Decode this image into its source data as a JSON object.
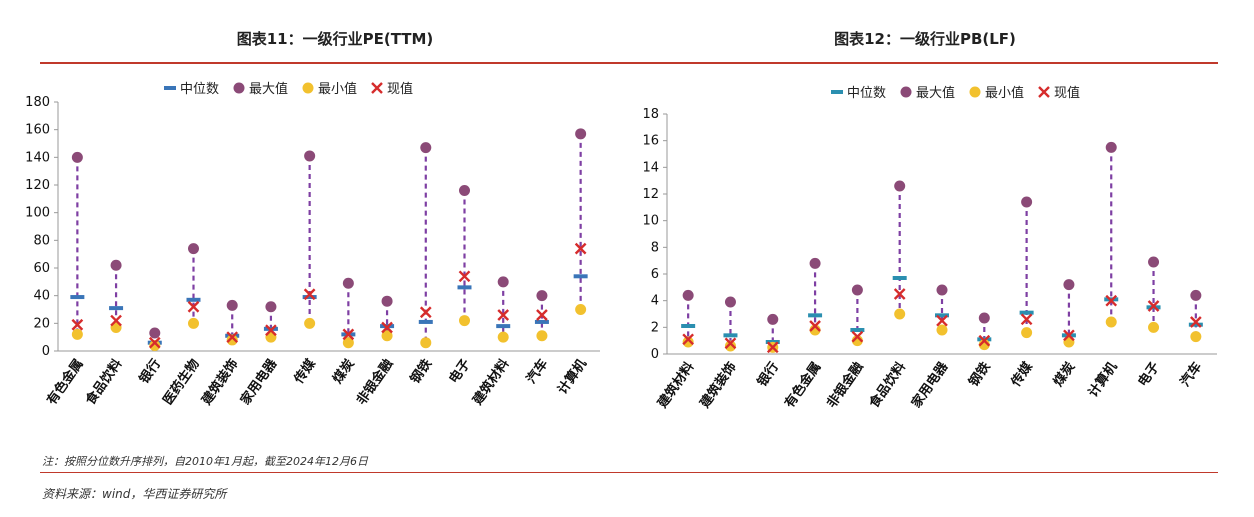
{
  "page": {
    "left_title": "图表11：一级行业PE(TTM)",
    "right_title": "图表12：一级行业PB(LF)",
    "note": "注：按照分位数升序排列，自2010年1月起，截至2024年12月6日",
    "source": "资料来源：wind，华西证券研究所"
  },
  "legend": {
    "median": "中位数",
    "max": "最大值",
    "min": "最小值",
    "current": "现值"
  },
  "colors": {
    "median": "#3a75b8",
    "median_right": "#2b8fb0",
    "max": "#8b4a77",
    "min": "#f2c12e",
    "current": "#d62c2c",
    "range_line": "#7e3fa3",
    "axis": "#999999",
    "rule": "#c0392b"
  },
  "chart_data": [
    {
      "type": "scatter",
      "title": "图表11：一级行业PE(TTM)",
      "ylim": [
        0,
        180
      ],
      "yticks": [
        0,
        20,
        40,
        60,
        80,
        100,
        120,
        140,
        160,
        180
      ],
      "categories": [
        "有色金属",
        "食品饮料",
        "银行",
        "医药生物",
        "建筑装饰",
        "家用电器",
        "传媒",
        "煤炭",
        "非银金融",
        "钢铁",
        "电子",
        "建筑材料",
        "汽车",
        "计算机"
      ],
      "series": [
        {
          "name": "中位数",
          "values": [
            39,
            31,
            6,
            37,
            11,
            16,
            39,
            12,
            18,
            21,
            46,
            18,
            21,
            54
          ]
        },
        {
          "name": "最大值",
          "values": [
            140,
            62,
            13,
            74,
            33,
            32,
            141,
            49,
            36,
            147,
            116,
            50,
            40,
            157
          ]
        },
        {
          "name": "最小值",
          "values": [
            12,
            17,
            4,
            20,
            8,
            10,
            20,
            6,
            11,
            6,
            22,
            10,
            11,
            30
          ]
        },
        {
          "name": "现值",
          "values": [
            19,
            22,
            6,
            32,
            10,
            15,
            41,
            12,
            17,
            28,
            54,
            26,
            26,
            74
          ]
        }
      ]
    },
    {
      "type": "scatter",
      "title": "图表12：一级行业PB(LF)",
      "ylim": [
        0,
        18
      ],
      "yticks": [
        0,
        2,
        4,
        6,
        8,
        10,
        12,
        14,
        16,
        18
      ],
      "categories": [
        "建筑材料",
        "建筑装饰",
        "银行",
        "有色金属",
        "非银金融",
        "食品饮料",
        "家用电器",
        "钢铁",
        "传媒",
        "煤炭",
        "计算机",
        "电子",
        "汽车"
      ],
      "series": [
        {
          "name": "中位数",
          "values": [
            2.1,
            1.4,
            0.9,
            2.9,
            1.8,
            5.7,
            2.9,
            1.1,
            3.1,
            1.4,
            4.1,
            3.5,
            2.2
          ]
        },
        {
          "name": "最大值",
          "values": [
            4.4,
            3.9,
            2.6,
            6.8,
            4.8,
            12.6,
            4.8,
            2.7,
            11.4,
            5.2,
            15.5,
            6.9,
            4.4
          ]
        },
        {
          "name": "最小值",
          "values": [
            0.9,
            0.6,
            0.5,
            1.8,
            1.0,
            3.0,
            1.8,
            0.7,
            1.6,
            0.9,
            2.4,
            2.0,
            1.3
          ]
        },
        {
          "name": "现值",
          "values": [
            1.1,
            0.8,
            0.5,
            2.1,
            1.3,
            4.5,
            2.5,
            1.0,
            2.6,
            1.4,
            4.0,
            3.6,
            2.4
          ]
        }
      ]
    }
  ]
}
